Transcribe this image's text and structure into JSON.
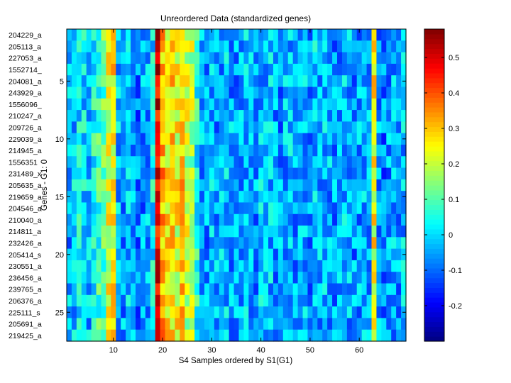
{
  "chart_data": [
    {
      "type": "heatmap",
      "title": "Unreordered Data (standardized genes)",
      "xlabel": "S4 Samples ordered by S1(G1)",
      "ylabel": "Genes - G1: 0",
      "xlim": [
        0.5,
        69.5
      ],
      "ylim": [
        0.5,
        27.5
      ],
      "n_cols": 69,
      "row_labels": [
        "204229_a",
        "205113_a",
        "227053_a",
        "1552714_",
        "204081_a",
        "243929_a",
        "1556096_",
        "210247_a",
        "209726_a",
        "229039_a",
        "214945_a",
        "1556351",
        "231489_x",
        "205635_a",
        "219659_a",
        "204546_a",
        "210040_a",
        "214811_a",
        "232426_a",
        "205414_s",
        "230551_a",
        "236456_a",
        "239765_a",
        "206376_a",
        "225111_s",
        "205691_a",
        "219425_a"
      ],
      "xticks": [
        10,
        20,
        30,
        40,
        50,
        60
      ],
      "xtick_labels": [
        "10",
        "20",
        "30",
        "40",
        "50",
        "60"
      ],
      "yticks": [
        5,
        10,
        15,
        20,
        25
      ],
      "ytick_labels": [
        "5",
        "10",
        "15",
        "20",
        "25"
      ],
      "colormap": "jet",
      "color_range": [
        -0.3,
        0.58
      ],
      "column_means": [
        -0.05,
        -0.02,
        0.02,
        0.0,
        -0.03,
        0.05,
        0.08,
        0.12,
        0.22,
        0.26,
        -0.02,
        -0.05,
        -0.03,
        -0.04,
        -0.08,
        -0.06,
        -0.04,
        0.02,
        0.5,
        0.32,
        0.26,
        0.28,
        0.24,
        0.3,
        0.2,
        0.18,
        0.05,
        -0.04,
        -0.06,
        -0.03,
        -0.05,
        -0.04,
        -0.02,
        -0.05,
        -0.06,
        -0.04,
        -0.03,
        -0.05,
        -0.06,
        -0.02,
        -0.04,
        -0.03,
        -0.05,
        -0.06,
        -0.04,
        -0.02,
        -0.05,
        -0.03,
        -0.04,
        -0.06,
        -0.02,
        -0.05,
        -0.03,
        -0.04,
        -0.06,
        -0.05,
        -0.02,
        -0.04,
        -0.06,
        -0.05,
        -0.03,
        -0.04,
        0.24,
        -0.05,
        -0.08,
        -0.06,
        -0.04,
        -0.05,
        -0.03
      ]
    },
    {
      "type": "colorbar",
      "colormap": "jet",
      "range": [
        -0.3,
        0.58
      ],
      "ticks": [
        -0.2,
        -0.1,
        0,
        0.1,
        0.2,
        0.3,
        0.4,
        0.5
      ],
      "tick_labels": [
        "-0.2",
        "-0.1",
        "0",
        "0.1",
        "0.2",
        "0.3",
        "0.4",
        "0.5"
      ]
    }
  ]
}
